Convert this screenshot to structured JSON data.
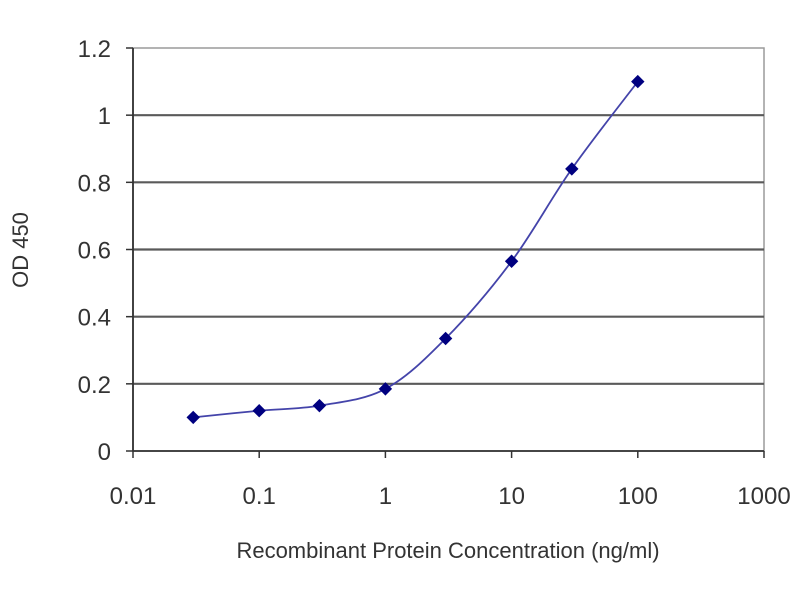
{
  "chart_data": {
    "type": "line",
    "xlabel": "Recombinant Protein Concentration (ng/ml)",
    "ylabel": "OD 450",
    "x_scale": "log",
    "xlim": [
      0.01,
      1000
    ],
    "ylim": [
      0,
      1.2
    ],
    "x_ticks": [
      0.01,
      0.1,
      1,
      10,
      100,
      1000
    ],
    "x_tick_labels": [
      "0.01",
      "0.1",
      "1",
      "10",
      "100",
      "1000"
    ],
    "y_ticks": [
      0,
      0.2,
      0.4,
      0.6,
      0.8,
      1,
      1.2
    ],
    "y_tick_labels": [
      "0",
      "0.2",
      "0.4",
      "0.6",
      "0.8",
      "1",
      "1.2"
    ],
    "grid": "horizontal",
    "legend": "none",
    "series": [
      {
        "x": [
          0.03,
          0.1,
          0.3,
          1,
          3,
          10,
          30,
          100
        ],
        "y": [
          0.1,
          0.12,
          0.135,
          0.185,
          0.335,
          0.565,
          0.84,
          1.1
        ]
      }
    ],
    "colors": {
      "line": "#4444aa",
      "marker": "#000080",
      "grid": "#5a5a5a",
      "axis": "#333333",
      "text": "#333333"
    }
  }
}
